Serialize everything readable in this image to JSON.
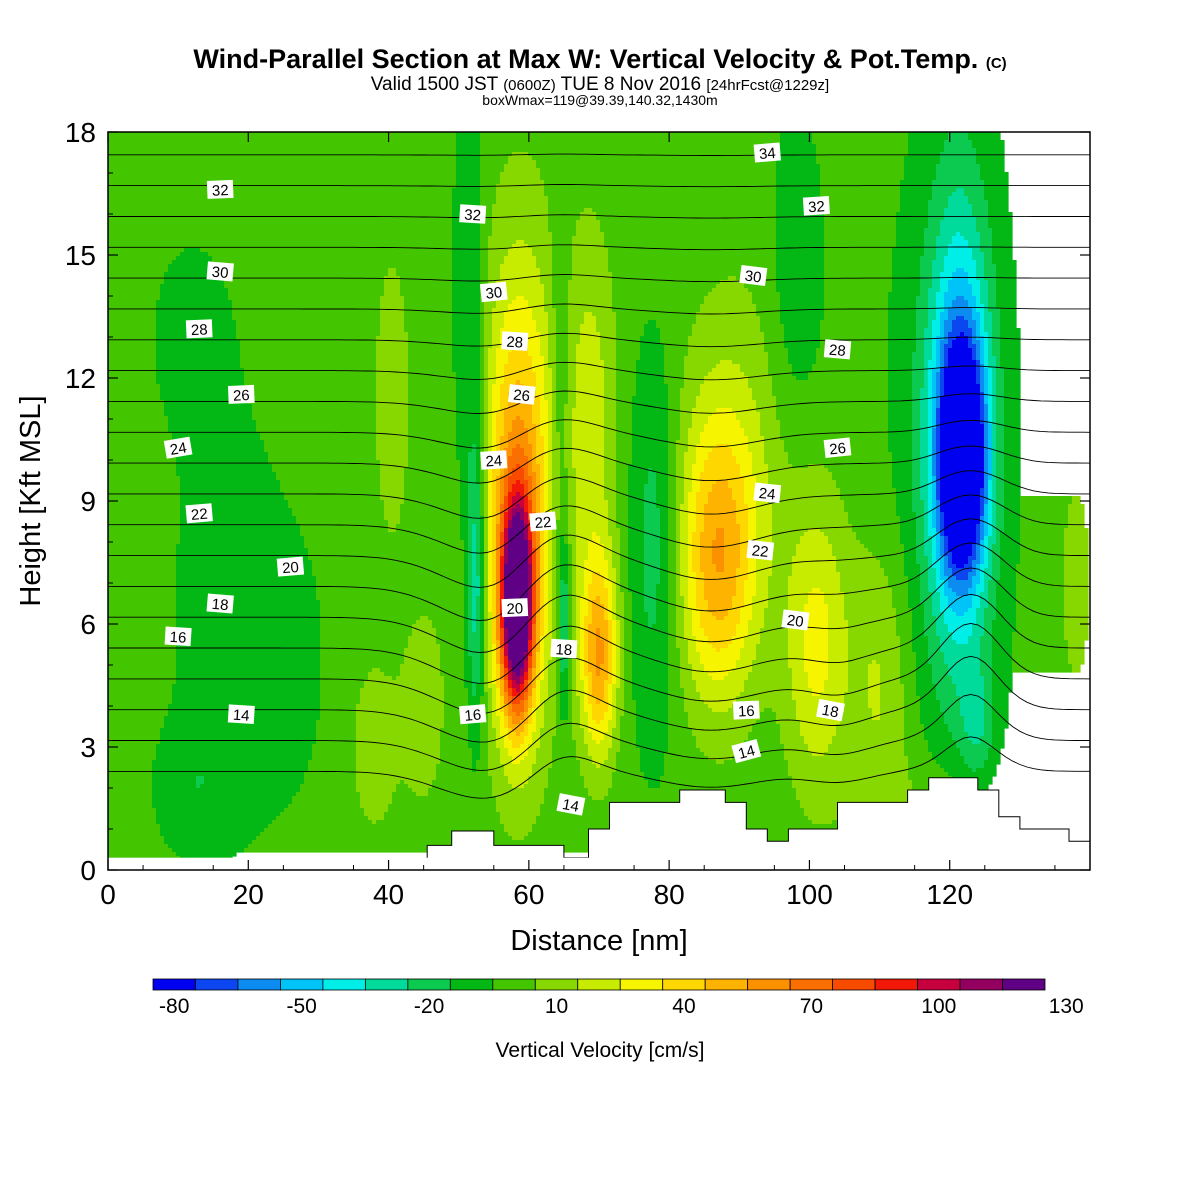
{
  "header": {
    "title": "Wind-Parallel Section at Max W: Vertical Velocity & Pot.Temp.",
    "title_mark": "(C)",
    "valid_main": "Valid 1500 JST",
    "valid_utc": "(0600Z)",
    "valid_date": "TUE 8 Nov 2016",
    "forecast": "[24hrFcst@1229z]",
    "box_info": "boxWmax=119@39.39,140.32,1430m"
  },
  "chart_data": {
    "type": "heatmap",
    "xlabel": "Distance [nm]",
    "ylabel": "Height [Kft MSL]",
    "xlim": [
      0,
      140
    ],
    "ylim": [
      0,
      18
    ],
    "x_ticks": [
      0,
      20,
      40,
      60,
      80,
      100,
      120
    ],
    "y_ticks": [
      0,
      3,
      6,
      9,
      12,
      15,
      18
    ],
    "colorbar": {
      "label": "Vertical Velocity [cm/s]",
      "min": -80,
      "step": 10,
      "tick_labels": [
        "-80",
        "-50",
        "-20",
        "10",
        "40",
        "70",
        "100",
        "130"
      ],
      "colors": [
        "#0000f0",
        "#0b46f0",
        "#0c8cf0",
        "#00c3f7",
        "#00eee8",
        "#00da9a",
        "#0cc94f",
        "#03b815",
        "#43c600",
        "#87d800",
        "#c8ec00",
        "#f7f400",
        "#fed600",
        "#fdb300",
        "#fc9100",
        "#fb6f00",
        "#f94b00",
        "#f11808",
        "#c6003e",
        "#940060",
        "#5f0085"
      ]
    },
    "w_features": [
      {
        "x": 58,
        "y": 6.5,
        "w": 135,
        "desc": "updraft core"
      },
      {
        "x": 70,
        "y": 4.8,
        "w": 75
      },
      {
        "x": 86,
        "y": 7.5,
        "w": 60
      },
      {
        "x": 100,
        "y": 5.5,
        "w": 45
      },
      {
        "x": 53,
        "y": 7,
        "w": -25
      },
      {
        "x": 65,
        "y": 6,
        "w": -20
      },
      {
        "x": 122,
        "y": 10,
        "w": -80,
        "desc": "downdraft core"
      }
    ],
    "theta_contours": {
      "units": "C",
      "levels": [
        14,
        16,
        18,
        20,
        22,
        24,
        26,
        28,
        30,
        32,
        34
      ],
      "labels": [
        {
          "text": "32",
          "x": 16,
          "y": 16.6
        },
        {
          "text": "32",
          "x": 52,
          "y": 16.0
        },
        {
          "text": "34",
          "x": 94,
          "y": 17.5
        },
        {
          "text": "32",
          "x": 101,
          "y": 16.2
        },
        {
          "text": "30",
          "x": 16,
          "y": 14.6
        },
        {
          "text": "30",
          "x": 55,
          "y": 14.1
        },
        {
          "text": "30",
          "x": 92,
          "y": 14.5
        },
        {
          "text": "28",
          "x": 13,
          "y": 13.2
        },
        {
          "text": "28",
          "x": 58,
          "y": 12.9
        },
        {
          "text": "28",
          "x": 104,
          "y": 12.7
        },
        {
          "text": "26",
          "x": 19,
          "y": 11.6
        },
        {
          "text": "26",
          "x": 59,
          "y": 11.6
        },
        {
          "text": "26",
          "x": 104,
          "y": 10.3
        },
        {
          "text": "24",
          "x": 10,
          "y": 10.3
        },
        {
          "text": "24",
          "x": 55,
          "y": 10.0
        },
        {
          "text": "24",
          "x": 94,
          "y": 9.2
        },
        {
          "text": "22",
          "x": 13,
          "y": 8.7
        },
        {
          "text": "22",
          "x": 62,
          "y": 8.5
        },
        {
          "text": "22",
          "x": 93,
          "y": 7.8
        },
        {
          "text": "20",
          "x": 26,
          "y": 7.4
        },
        {
          "text": "20",
          "x": 58,
          "y": 6.4
        },
        {
          "text": "20",
          "x": 98,
          "y": 6.1
        },
        {
          "text": "18",
          "x": 16,
          "y": 6.5
        },
        {
          "text": "18",
          "x": 65,
          "y": 5.4
        },
        {
          "text": "18",
          "x": 103,
          "y": 3.9
        },
        {
          "text": "16",
          "x": 10,
          "y": 5.7
        },
        {
          "text": "16",
          "x": 52,
          "y": 3.8
        },
        {
          "text": "16",
          "x": 91,
          "y": 3.9
        },
        {
          "text": "14",
          "x": 19,
          "y": 3.8
        },
        {
          "text": "14",
          "x": 66,
          "y": 1.6
        },
        {
          "text": "14",
          "x": 91,
          "y": 2.9
        }
      ]
    },
    "terrain": [
      [
        0,
        0
      ],
      [
        45.5,
        0
      ],
      [
        45.5,
        0.6
      ],
      [
        49,
        0.6
      ],
      [
        49,
        0.95
      ],
      [
        55,
        0.95
      ],
      [
        55,
        0.6
      ],
      [
        65,
        0.6
      ],
      [
        65,
        0.3
      ],
      [
        68.5,
        0.3
      ],
      [
        68.5,
        1.0
      ],
      [
        71.5,
        1.0
      ],
      [
        71.5,
        1.65
      ],
      [
        81.5,
        1.65
      ],
      [
        81.5,
        1.95
      ],
      [
        88,
        1.95
      ],
      [
        88,
        1.65
      ],
      [
        91,
        1.65
      ],
      [
        91,
        1.0
      ],
      [
        94,
        1.0
      ],
      [
        94,
        0.7
      ],
      [
        97,
        0.7
      ],
      [
        97,
        1.0
      ],
      [
        104,
        1.0
      ],
      [
        104,
        1.65
      ],
      [
        114,
        1.65
      ],
      [
        114,
        1.95
      ],
      [
        117,
        1.95
      ],
      [
        117,
        2.25
      ],
      [
        124,
        2.25
      ],
      [
        124,
        1.95
      ],
      [
        127,
        1.95
      ],
      [
        127,
        1.3
      ],
      [
        130,
        1.3
      ],
      [
        130,
        1.0
      ],
      [
        137,
        1.0
      ],
      [
        137,
        0.7
      ],
      [
        140,
        0.7
      ],
      [
        140,
        0
      ]
    ]
  }
}
